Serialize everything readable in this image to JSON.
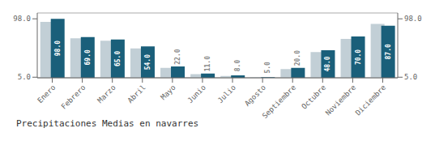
{
  "chart_data": {
    "type": "bar",
    "title": "Precipitaciones Medias en navarres",
    "categories": [
      "Enero",
      "Febrero",
      "Marzo",
      "Abril",
      "Mayo",
      "Junio",
      "Julio",
      "Agosto",
      "Septiembre",
      "Octubre",
      "Noviembre",
      "Diciembre"
    ],
    "series": [
      {
        "color": "#c2cfd6",
        "values": [
          93.0,
          67.0,
          63.0,
          51.0,
          20.0,
          10.0,
          7.0,
          5.0,
          18.0,
          45.0,
          66.0,
          90.0
        ]
      },
      {
        "color": "#1a5f7a",
        "values": [
          98.0,
          69.0,
          65.0,
          54.0,
          22.0,
          11.0,
          8.0,
          5.0,
          20.0,
          48.0,
          70.0,
          87.0
        ],
        "data_labels": true,
        "value_labels": [
          "98.0",
          "69.0",
          "65.0",
          "54.0",
          "22.0",
          "11.0",
          "8.0",
          "5.0",
          "20.0",
          "48.0",
          "70.0",
          "87.0"
        ]
      }
    ],
    "ylim": [
      4.07,
      107.3
    ],
    "yticks": [
      {
        "value": 5.0,
        "label": "5.0"
      },
      {
        "value": 98.0,
        "label": "98.0"
      }
    ],
    "y2lim": [
      4.07,
      107.3
    ],
    "y2ticks": [
      {
        "value": 5.0,
        "label": "5.0"
      },
      {
        "value": 98.0,
        "label": "98.0"
      }
    ],
    "grid": true
  }
}
